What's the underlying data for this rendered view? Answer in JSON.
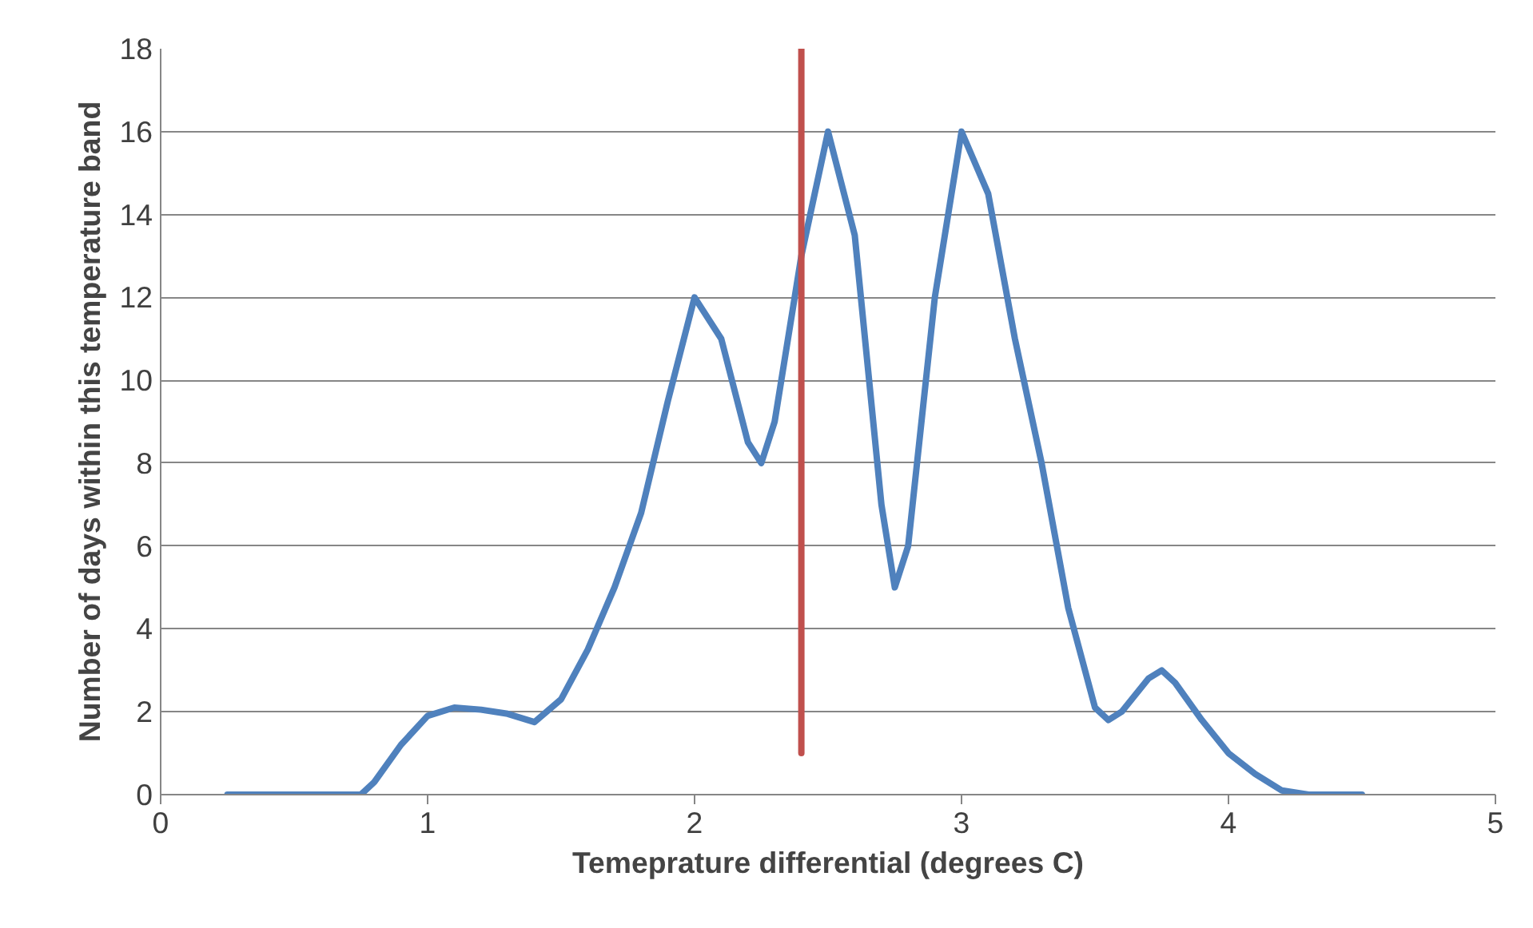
{
  "chart_data": {
    "type": "line",
    "xlabel": "Temeprature differential (degrees C)",
    "ylabel": "Number of days within this temperature band",
    "xlim": [
      0,
      5
    ],
    "xticks": [
      0,
      1,
      2,
      3,
      4,
      5
    ],
    "ylim": [
      0,
      18
    ],
    "yticks": [
      0,
      2,
      4,
      6,
      8,
      10,
      12,
      14,
      16,
      18
    ],
    "grid": "y",
    "series": [
      {
        "color": "#4f81bd",
        "x": [
          0.25,
          0.5,
          0.75,
          0.8,
          0.9,
          1.0,
          1.1,
          1.2,
          1.3,
          1.4,
          1.5,
          1.6,
          1.7,
          1.8,
          1.9,
          2.0,
          2.1,
          2.2,
          2.25,
          2.3,
          2.4,
          2.5,
          2.6,
          2.7,
          2.75,
          2.8,
          2.9,
          3.0,
          3.1,
          3.2,
          3.3,
          3.4,
          3.5,
          3.55,
          3.6,
          3.7,
          3.75,
          3.8,
          3.9,
          4.0,
          4.1,
          4.2,
          4.3,
          4.5
        ],
        "values": [
          0,
          0,
          0,
          0.3,
          1.2,
          1.9,
          2.1,
          2.05,
          1.95,
          1.75,
          2.3,
          3.5,
          5,
          6.8,
          9.5,
          12,
          11,
          8.5,
          8,
          9,
          13,
          16,
          13.5,
          7,
          5,
          6,
          12,
          16,
          14.5,
          11,
          8,
          4.5,
          2.1,
          1.8,
          2,
          2.8,
          3,
          2.7,
          1.8,
          1,
          0.5,
          0.1,
          0,
          0
        ]
      },
      {
        "color": "#c0504d",
        "x": [
          2.4,
          2.4
        ],
        "values": [
          1,
          18
        ]
      }
    ]
  }
}
